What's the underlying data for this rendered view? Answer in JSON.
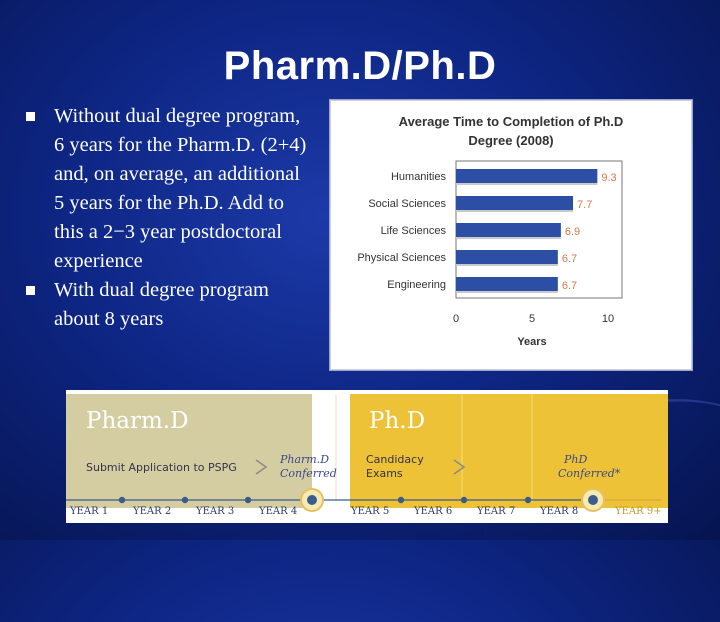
{
  "slide": {
    "title": "Pharm.D/Ph.D",
    "bullets": [
      "Without dual degree program, 6 years for the Pharm.D. (2+4) and, on average, an additional 5 years for the Ph.D. Add to this a 2−3 year postdoctoral experience",
      "With dual degree program about 8 years"
    ]
  },
  "colors": {
    "background": "#0e2685",
    "bar": "#2c4fa5",
    "bar_label": "#d8784a",
    "pharmd_band": "#d5cda2",
    "phd_band": "#edc237",
    "timeline_line": "#3c5a8a",
    "timeline_label": "#2b3a6a"
  },
  "chart_data": {
    "type": "bar",
    "orientation": "horizontal",
    "title": "Average Time to Completion of Ph.D Degree (2008)",
    "categories": [
      "Humanities",
      "Social Sciences",
      "Life Sciences",
      "Physical Sciences",
      "Engineering"
    ],
    "values": [
      9.3,
      7.7,
      6.9,
      6.7,
      6.7
    ],
    "value_labels": [
      "9.3",
      "7.7",
      "6.9",
      "6.7",
      "6.7"
    ],
    "xlabel": "Years",
    "ylabel": "",
    "xlim": [
      0,
      10
    ],
    "xticks": [
      "0",
      "5",
      "10"
    ],
    "grid": false,
    "legend": "none"
  },
  "timeline": {
    "pharmd": {
      "title": "Pharm.D",
      "step": "Submit Application to PSPG",
      "conferred_line1": "Pharm.D",
      "conferred_line2": "Conferred"
    },
    "phd": {
      "title": "Ph.D",
      "step_line1": "Candidacy",
      "step_line2": "Exams",
      "conferred_line1": "PhD",
      "conferred_line2": "Conferred*"
    },
    "years": [
      "YEAR 1",
      "YEAR 2",
      "YEAR 3",
      "YEAR 4",
      "YEAR 5",
      "YEAR 6",
      "YEAR 7",
      "YEAR 8",
      "YEAR 9+"
    ]
  }
}
